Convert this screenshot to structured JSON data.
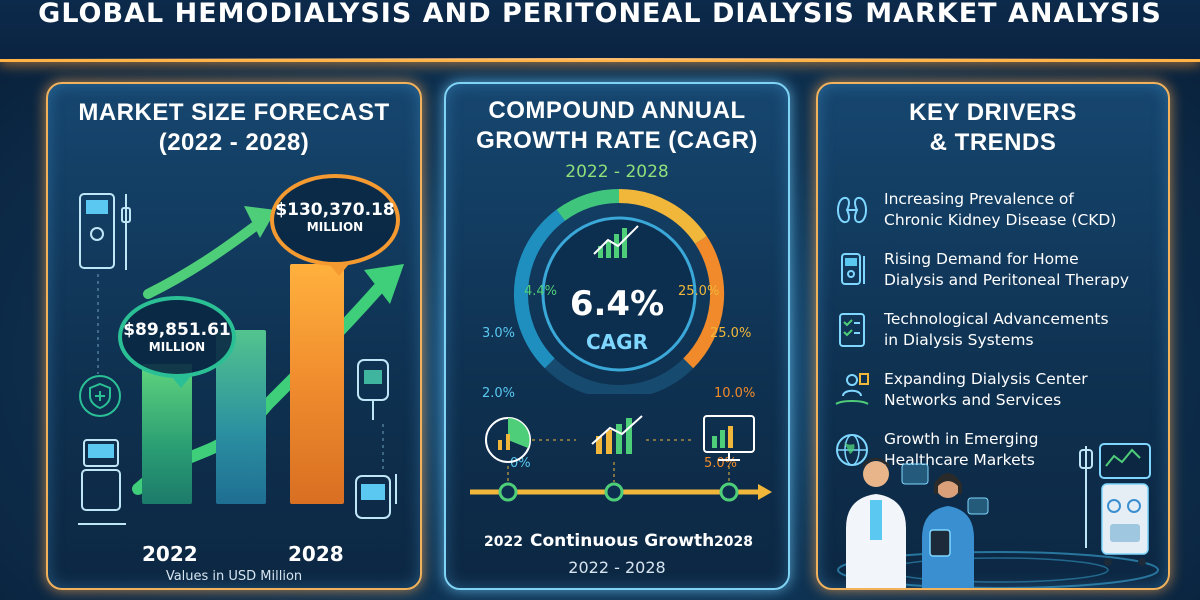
{
  "title": "GLOBAL HEMODIALYSIS AND PERITONEAL DIALYSIS MARKET ANALYSIS",
  "colors": {
    "accent_orange": "#f59a30",
    "accent_green": "#2bbf95",
    "accent_blue": "#7fd7ff",
    "background": "#0f3556"
  },
  "market_size": {
    "title_line1": "MARKET SIZE FORECAST",
    "title_line2": "(2022 - 2028)",
    "start_value": "$89,851.61",
    "start_unit": "MILLION",
    "end_value": "$130,370.18",
    "end_unit": "MILLION",
    "start_year": "2022",
    "end_year": "2028",
    "footnote": "Values in USD Million"
  },
  "cagr": {
    "title_line1": "COMPOUND ANNUAL",
    "title_line2": "GROWTH RATE (CAGR)",
    "period": "2022 - 2028",
    "value": "6.4%",
    "label": "CAGR",
    "scale_left": [
      "0%",
      "2.0%",
      "3.0%",
      "4.4%"
    ],
    "scale_right": [
      "25.0%",
      "25.0%",
      "10.0%",
      "5.0%"
    ],
    "timeline_start": "2022",
    "timeline_end": "2028",
    "timeline_title": "Continuous Growth",
    "timeline_period": "2022 - 2028"
  },
  "drivers": {
    "title_line1": "KEY DRIVERS",
    "title_line2": "& TRENDS",
    "items": [
      {
        "line1": "Increasing Prevalence of",
        "line2": "Chronic Kidney Disease (CKD)",
        "icon": "kidney-icon"
      },
      {
        "line1": "Rising Demand for Home",
        "line2": "Dialysis and Peritoneal Therapy",
        "icon": "dialysis-machine-icon"
      },
      {
        "line1": "Technological Advancements",
        "line2": "in Dialysis Systems",
        "icon": "checklist-icon"
      },
      {
        "line1": "Expanding Dialysis Center",
        "line2": "Networks and Services",
        "icon": "network-people-icon"
      },
      {
        "line1": "Growth in Emerging",
        "line2": "Healthcare Markets",
        "icon": "globe-icon"
      }
    ]
  }
}
